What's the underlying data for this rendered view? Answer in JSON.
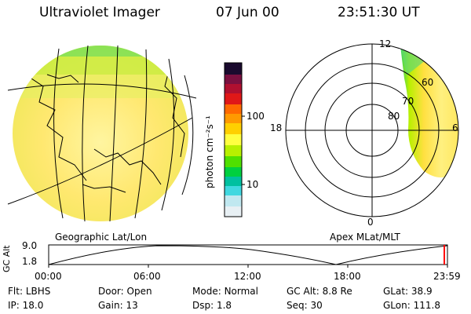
{
  "header": {
    "title": "Ultraviolet Imager",
    "date": "07 Jun 00",
    "time": "23:51:30 UT"
  },
  "colorbar": {
    "unit_label": "photon cm⁻²s⁻¹",
    "ticks": [
      "100",
      "10"
    ],
    "colors": [
      "#1a0a2e",
      "#7a1040",
      "#d21010",
      "#ff6a00",
      "#ff9a00",
      "#ffd000",
      "#ffff40",
      "#b8f000",
      "#50e000",
      "#00d040",
      "#00c0a0",
      "#40d8e0",
      "#c0e8f0",
      "#e8f0f4"
    ]
  },
  "polar": {
    "hour_labels": [
      "12",
      "18",
      "6",
      "0"
    ],
    "lat_labels": [
      "60",
      "70",
      "80"
    ]
  },
  "map_caption": "Geographic Lat/Lon",
  "polar_caption": "Apex MLat/MLT",
  "altitude_plot": {
    "axis_label": "GC Alt",
    "y_ticks": [
      "9.0",
      "1.8"
    ],
    "x_ticks": [
      "00:00",
      "06:00",
      "12:00",
      "18:00",
      "23:59"
    ]
  },
  "info": {
    "row1": [
      {
        "label": "Flt:",
        "value": "LBHS"
      },
      {
        "label": "Door:",
        "value": "Open"
      },
      {
        "label": "Mode:",
        "value": "Normal"
      },
      {
        "label": "GC Alt:",
        "value": "8.8 Re"
      },
      {
        "label": "GLat:",
        "value": "38.9"
      }
    ],
    "row2": [
      {
        "label": "IP:",
        "value": "18.0"
      },
      {
        "label": "Gain:",
        "value": "13"
      },
      {
        "label": "Dsp:",
        "value": "1.8"
      },
      {
        "label": "Seq:",
        "value": "30"
      },
      {
        "label": "GLon:",
        "value": "111.8"
      }
    ]
  }
}
